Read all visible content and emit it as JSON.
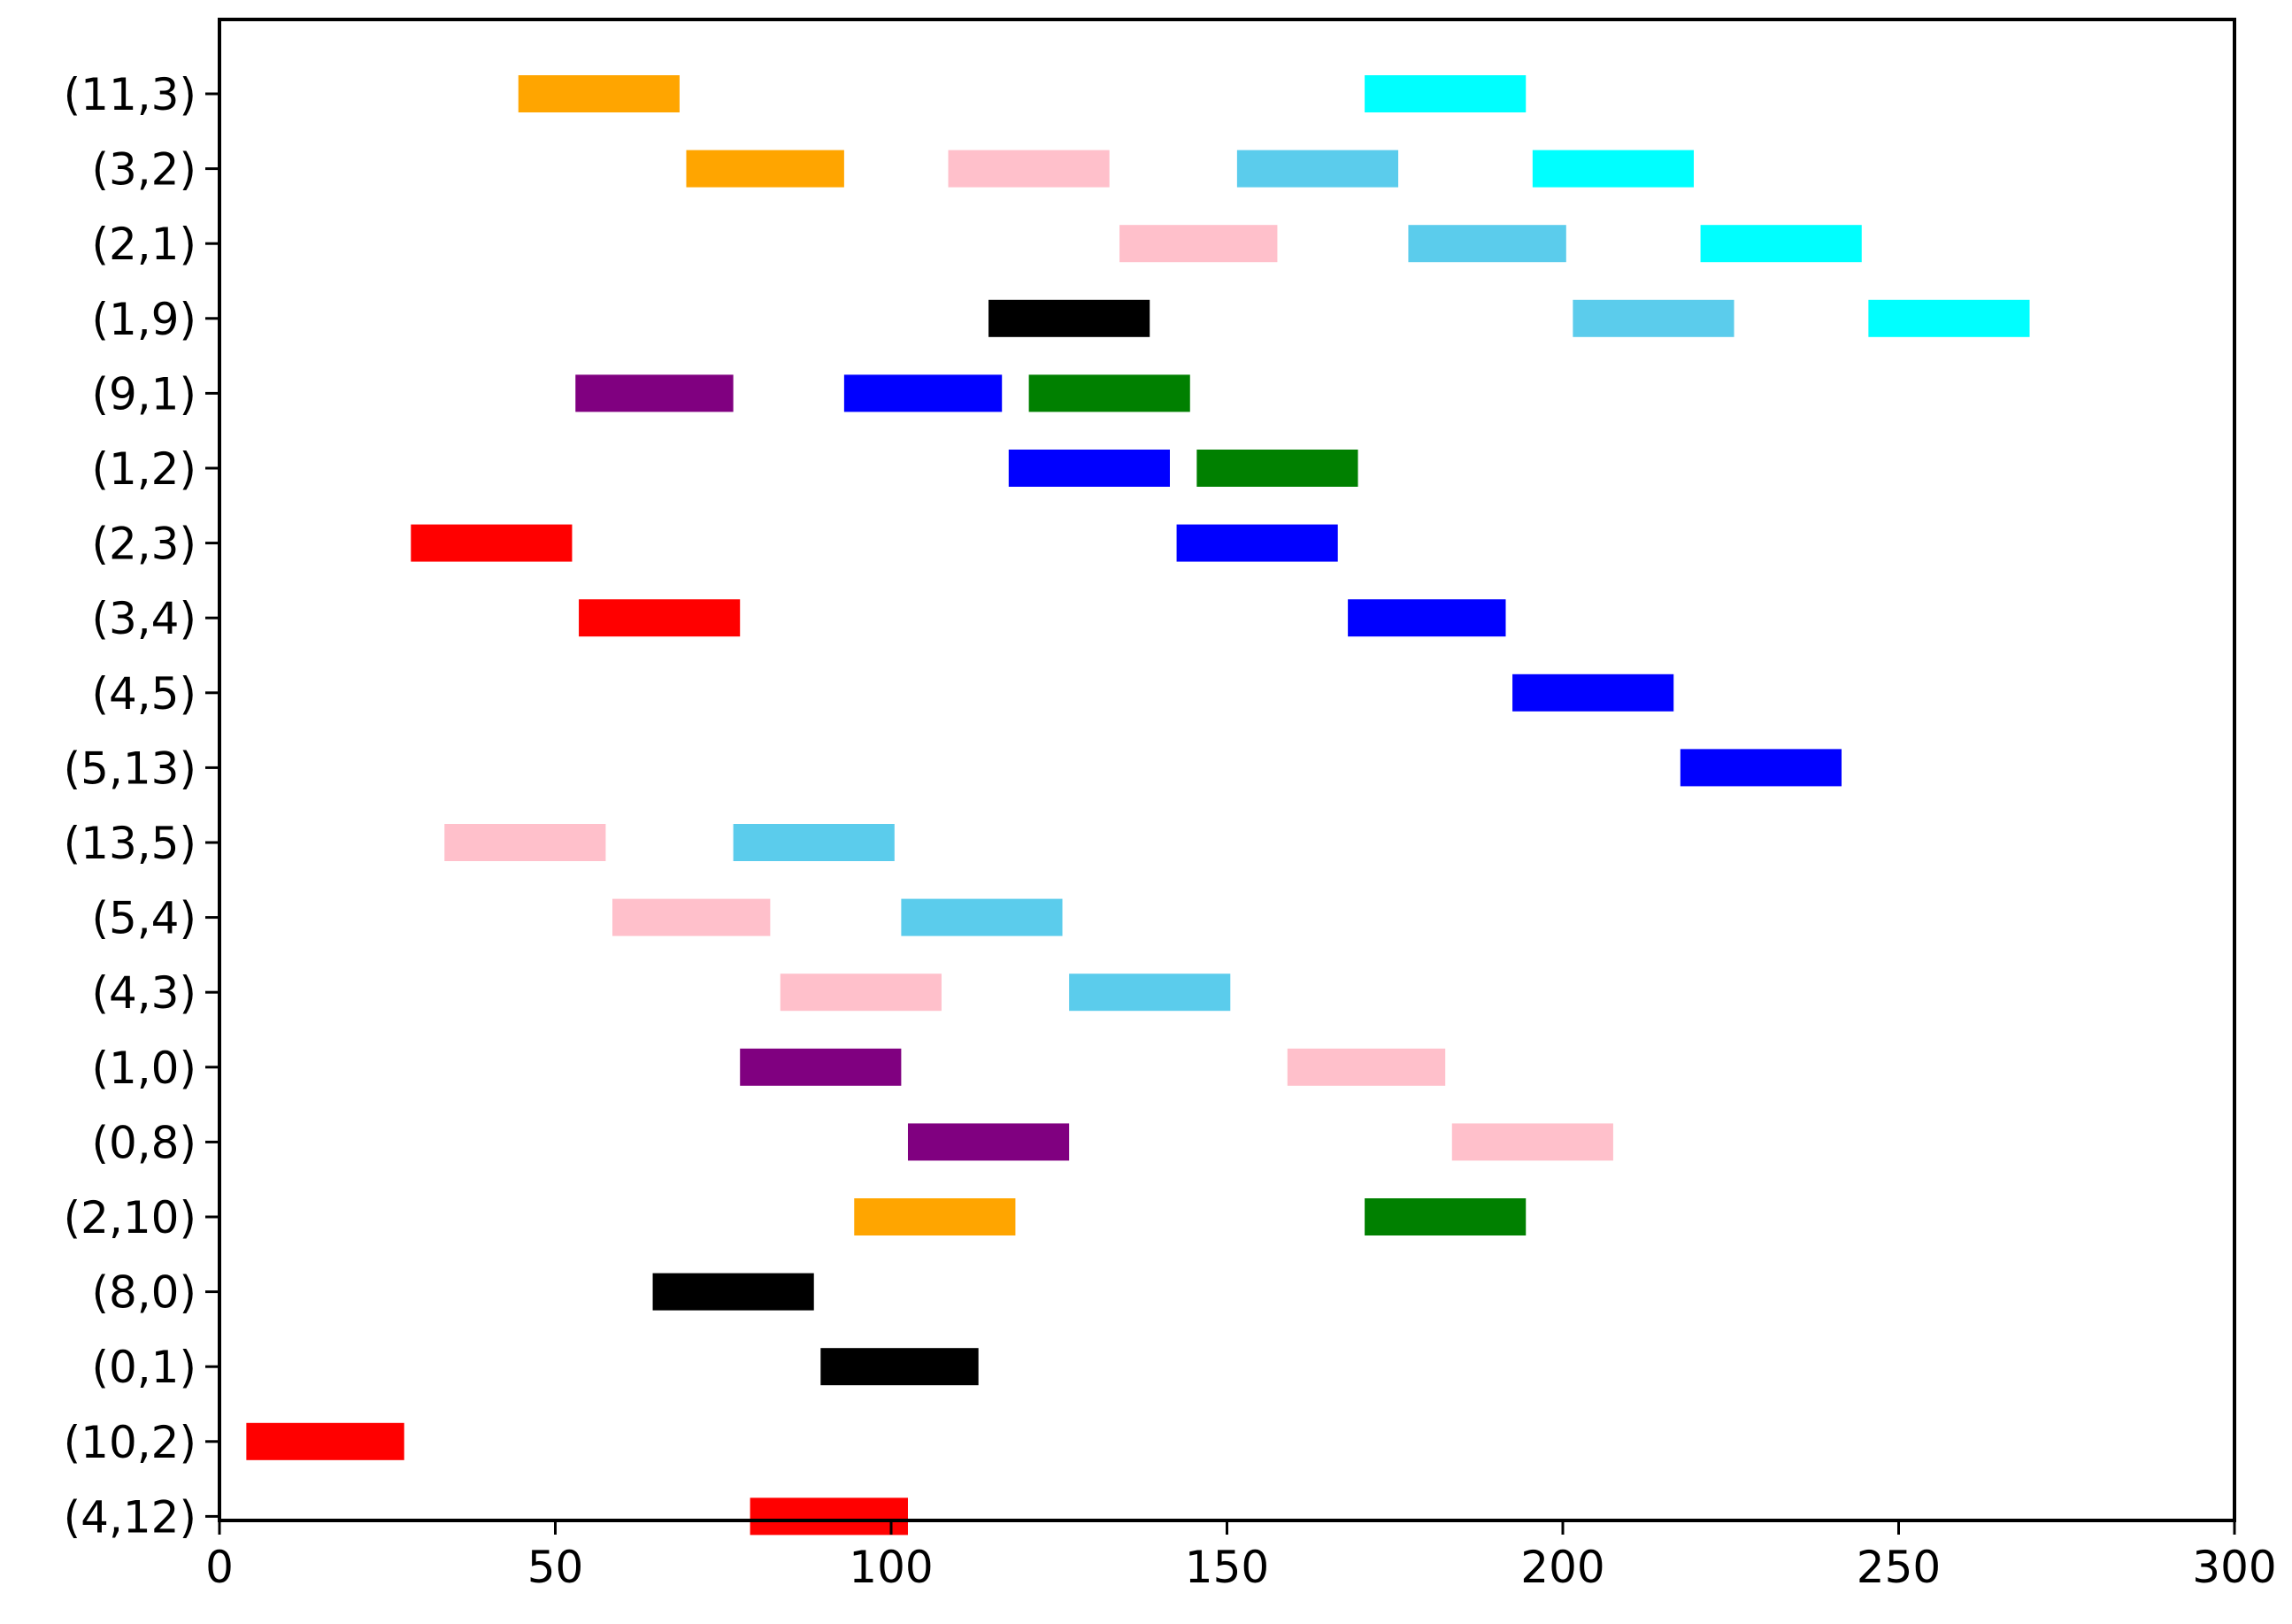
{
  "chart_data": {
    "type": "bar",
    "orientation": "horizontal-timeline",
    "title": "",
    "xlabel": "",
    "ylabel": "",
    "xlim": [
      0,
      300
    ],
    "xticks": [
      0,
      50,
      100,
      150,
      200,
      250,
      300
    ],
    "grid": false,
    "categories": [
      "(11,3)",
      "(3,2)",
      "(2,1)",
      "(1,9)",
      "(9,1)",
      "(1,2)",
      "(2,3)",
      "(3,4)",
      "(4,5)",
      "(5,13)",
      "(13,5)",
      "(5,4)",
      "(4,3)",
      "(1,0)",
      "(0,8)",
      "(2,10)",
      "(8,0)",
      "(0,1)",
      "(10,2)",
      "(4,12)"
    ],
    "colors": {
      "orange": "#FFA500",
      "cyan": "#00FFFF",
      "pink": "#FFC0CB",
      "skyblue": "#5BCCEC",
      "black": "#000000",
      "purple": "#800080",
      "blue": "#0000FF",
      "green": "#008000",
      "red": "#FF0000"
    },
    "bars": [
      {
        "category": "(11,3)",
        "start": 44.5,
        "end": 68.5,
        "color": "orange"
      },
      {
        "category": "(11,3)",
        "start": 170.5,
        "end": 194.5,
        "color": "cyan"
      },
      {
        "category": "(3,2)",
        "start": 69.5,
        "end": 93,
        "color": "orange"
      },
      {
        "category": "(3,2)",
        "start": 108.5,
        "end": 132.5,
        "color": "pink"
      },
      {
        "category": "(3,2)",
        "start": 151.5,
        "end": 175.5,
        "color": "skyblue"
      },
      {
        "category": "(3,2)",
        "start": 195.5,
        "end": 219.5,
        "color": "cyan"
      },
      {
        "category": "(2,1)",
        "start": 134,
        "end": 157.5,
        "color": "pink"
      },
      {
        "category": "(2,1)",
        "start": 177,
        "end": 200.5,
        "color": "skyblue"
      },
      {
        "category": "(2,1)",
        "start": 220.5,
        "end": 244.5,
        "color": "cyan"
      },
      {
        "category": "(1,9)",
        "start": 114.5,
        "end": 138.5,
        "color": "black"
      },
      {
        "category": "(1,9)",
        "start": 201.5,
        "end": 225.5,
        "color": "skyblue"
      },
      {
        "category": "(1,9)",
        "start": 245.5,
        "end": 269.5,
        "color": "cyan"
      },
      {
        "category": "(9,1)",
        "start": 53,
        "end": 76.5,
        "color": "purple"
      },
      {
        "category": "(9,1)",
        "start": 93,
        "end": 116.5,
        "color": "blue"
      },
      {
        "category": "(9,1)",
        "start": 120.5,
        "end": 144.5,
        "color": "green"
      },
      {
        "category": "(1,2)",
        "start": 117.5,
        "end": 141.5,
        "color": "blue"
      },
      {
        "category": "(1,2)",
        "start": 145.5,
        "end": 169.5,
        "color": "green"
      },
      {
        "category": "(2,3)",
        "start": 28.5,
        "end": 52.5,
        "color": "red"
      },
      {
        "category": "(2,3)",
        "start": 142.5,
        "end": 166.5,
        "color": "blue"
      },
      {
        "category": "(3,4)",
        "start": 53.5,
        "end": 77.5,
        "color": "red"
      },
      {
        "category": "(3,4)",
        "start": 168,
        "end": 191.5,
        "color": "blue"
      },
      {
        "category": "(4,5)",
        "start": 192.5,
        "end": 216.5,
        "color": "blue"
      },
      {
        "category": "(5,13)",
        "start": 217.5,
        "end": 241.5,
        "color": "blue"
      },
      {
        "category": "(13,5)",
        "start": 33.5,
        "end": 57.5,
        "color": "pink"
      },
      {
        "category": "(13,5)",
        "start": 76.5,
        "end": 100.5,
        "color": "skyblue"
      },
      {
        "category": "(5,4)",
        "start": 58.5,
        "end": 82,
        "color": "pink"
      },
      {
        "category": "(5,4)",
        "start": 101.5,
        "end": 125.5,
        "color": "skyblue"
      },
      {
        "category": "(4,3)",
        "start": 83.5,
        "end": 107.5,
        "color": "pink"
      },
      {
        "category": "(4,3)",
        "start": 126.5,
        "end": 150.5,
        "color": "skyblue"
      },
      {
        "category": "(1,0)",
        "start": 77.5,
        "end": 101.5,
        "color": "purple"
      },
      {
        "category": "(1,0)",
        "start": 159,
        "end": 182.5,
        "color": "pink"
      },
      {
        "category": "(0,8)",
        "start": 102.5,
        "end": 126.5,
        "color": "purple"
      },
      {
        "category": "(0,8)",
        "start": 183.5,
        "end": 207.5,
        "color": "pink"
      },
      {
        "category": "(2,10)",
        "start": 94.5,
        "end": 118.5,
        "color": "orange"
      },
      {
        "category": "(2,10)",
        "start": 170.5,
        "end": 194.5,
        "color": "green"
      },
      {
        "category": "(8,0)",
        "start": 64.5,
        "end": 88.5,
        "color": "black"
      },
      {
        "category": "(0,1)",
        "start": 89.5,
        "end": 113,
        "color": "black"
      },
      {
        "category": "(10,2)",
        "start": 4,
        "end": 27.5,
        "color": "red"
      },
      {
        "category": "(4,12)",
        "start": 79,
        "end": 102.5,
        "color": "red"
      }
    ]
  }
}
